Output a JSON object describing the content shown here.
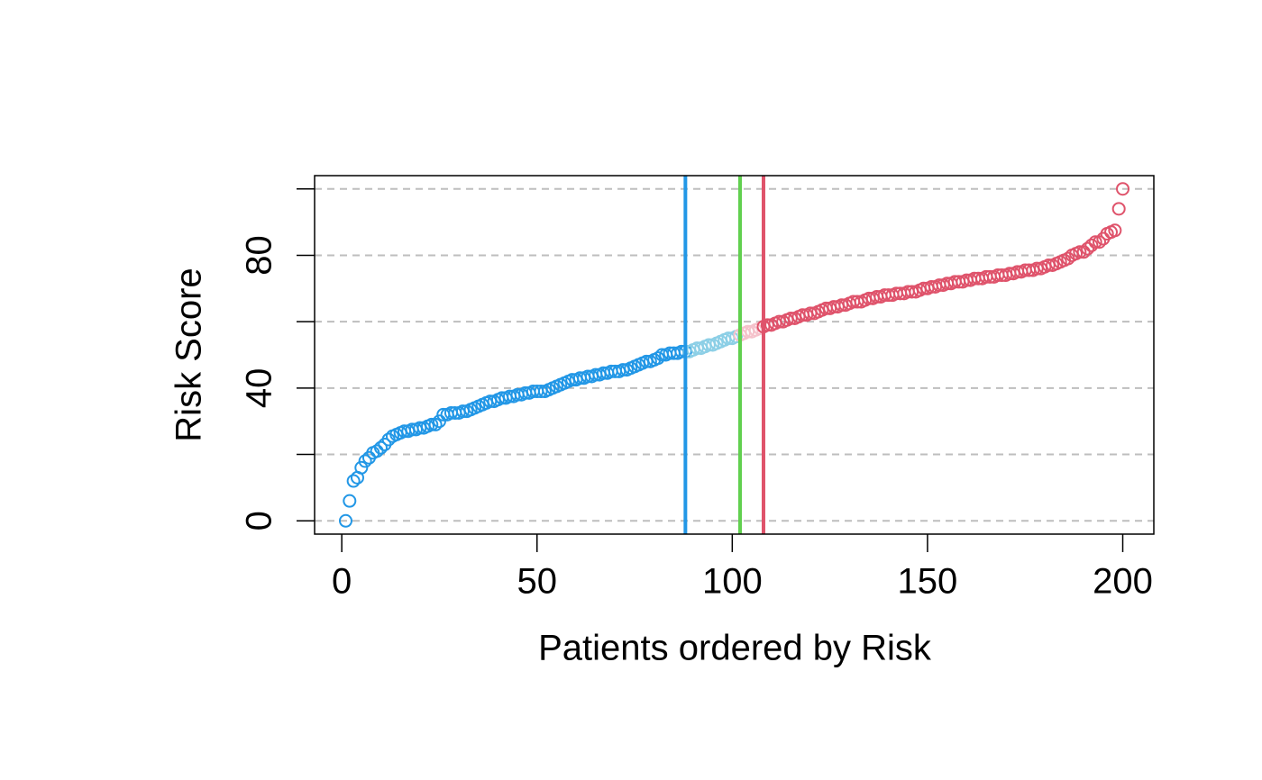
{
  "chart_data": {
    "type": "scatter",
    "xlabel": "Patients ordered by Risk",
    "ylabel": "Risk Score",
    "xlim": [
      -6.96,
      207.96
    ],
    "ylim": [
      -4,
      104
    ],
    "xticks": [
      0,
      50,
      100,
      150,
      200
    ],
    "yticks": [
      0,
      40,
      80
    ],
    "yticks_unlabeled": [
      20,
      60,
      100
    ],
    "grid": true,
    "series": [
      {
        "color": "#2297E6",
        "x": [
          1,
          2,
          3,
          4,
          5,
          6,
          7,
          8,
          9,
          10,
          11,
          12,
          13,
          14,
          15,
          16,
          17,
          18,
          19,
          20,
          21,
          22,
          23,
          24,
          25,
          26,
          27,
          28,
          29,
          30,
          31,
          32,
          33,
          34,
          35,
          36,
          37,
          38,
          39,
          40,
          41,
          42,
          43,
          44,
          45,
          46,
          47,
          48,
          49,
          50,
          51,
          52,
          53,
          54,
          55,
          56,
          57,
          58,
          59,
          60,
          61,
          62,
          63,
          64,
          65,
          66,
          67,
          68,
          69,
          70,
          71,
          72,
          73,
          74,
          75,
          76,
          77,
          78,
          79,
          80,
          81,
          82,
          83,
          84,
          85,
          86,
          87,
          88
        ],
        "values": [
          0,
          6,
          12,
          13,
          16,
          18,
          19,
          20.5,
          21,
          22,
          23,
          24.5,
          25.5,
          26,
          26.5,
          27,
          27,
          27.5,
          27.5,
          28,
          28,
          28.5,
          29,
          29,
          30,
          32,
          32,
          32.5,
          32.5,
          32.5,
          33,
          33,
          33.5,
          34,
          34.5,
          35,
          35.5,
          36,
          36,
          36.5,
          37,
          37,
          37.5,
          37.5,
          38,
          38,
          38.5,
          38.5,
          39,
          39,
          39,
          39,
          39.5,
          40,
          40.5,
          41,
          41.5,
          42,
          42.5,
          42.5,
          43,
          43,
          43.5,
          43.5,
          44,
          44,
          44.5,
          44.5,
          45,
          45,
          45,
          45.5,
          45.5,
          46,
          46.5,
          47,
          47.5,
          48,
          48,
          48.5,
          49,
          50,
          50,
          50.5,
          50.5,
          50.5,
          51,
          51
        ]
      },
      {
        "color": "#8ccfe6",
        "x": [
          89,
          90,
          91,
          92,
          93,
          94,
          95,
          96,
          97,
          98,
          99,
          100,
          101
        ],
        "values": [
          51,
          51.5,
          52,
          52,
          52.5,
          53,
          53,
          53.5,
          54,
          54.5,
          55,
          55,
          55.5
        ]
      },
      {
        "color": "#f5c2cb",
        "x": [
          102,
          103,
          104,
          105,
          106,
          107
        ],
        "values": [
          56,
          56.5,
          57,
          57,
          57.5,
          58
        ]
      },
      {
        "color": "#DF536B",
        "x": [
          108,
          109,
          110,
          111,
          112,
          113,
          114,
          115,
          116,
          117,
          118,
          119,
          120,
          121,
          122,
          123,
          124,
          125,
          126,
          127,
          128,
          129,
          130,
          131,
          132,
          133,
          134,
          135,
          136,
          137,
          138,
          139,
          140,
          141,
          142,
          143,
          144,
          145,
          146,
          147,
          148,
          149,
          150,
          151,
          152,
          153,
          154,
          155,
          156,
          157,
          158,
          159,
          160,
          161,
          162,
          163,
          164,
          165,
          166,
          167,
          168,
          169,
          170,
          171,
          172,
          173,
          174,
          175,
          176,
          177,
          178,
          179,
          180,
          181,
          182,
          183,
          184,
          185,
          186,
          187,
          188,
          189,
          190,
          191,
          192,
          193,
          194,
          195,
          196,
          197,
          198,
          199,
          200
        ],
        "values": [
          58.5,
          59,
          59,
          59.5,
          60,
          60,
          60.5,
          61,
          61,
          61.5,
          62,
          62,
          62.5,
          62.5,
          63,
          63.5,
          64,
          64,
          64.5,
          64.5,
          65,
          65,
          65.5,
          66,
          66,
          66,
          66.5,
          67,
          67,
          67.5,
          67.5,
          68,
          68,
          68,
          68.5,
          68.5,
          68.5,
          69,
          69,
          69,
          69.5,
          70,
          70,
          70.5,
          70.5,
          71,
          71,
          71.5,
          71.5,
          72,
          72,
          72,
          72.5,
          72.5,
          73,
          73,
          73,
          73.5,
          73.5,
          73.5,
          74,
          74,
          74,
          74.5,
          74.5,
          75,
          75,
          75.5,
          75.5,
          75.5,
          76,
          76,
          76.5,
          77,
          77,
          77.5,
          78,
          78.5,
          79,
          80,
          80.5,
          81,
          81,
          82,
          83,
          84,
          84,
          85,
          86.5,
          87,
          87.5,
          94,
          100
        ]
      }
    ],
    "vlines": [
      {
        "x": 88,
        "color": "#2297E6"
      },
      {
        "x": 102,
        "color": "#61D04F"
      },
      {
        "x": 108,
        "color": "#DF536B"
      }
    ]
  }
}
